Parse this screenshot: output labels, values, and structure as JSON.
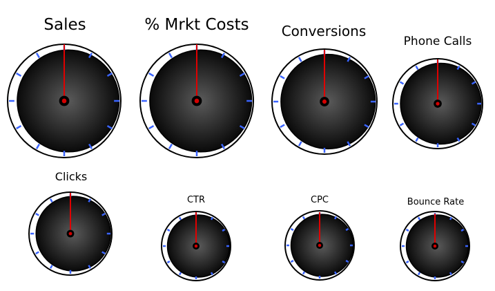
{
  "gauges": [
    {
      "id": "sales",
      "title": "Sales"
    },
    {
      "id": "mrkt-costs",
      "title": "% Mrkt Costs"
    },
    {
      "id": "conversions",
      "title": "Conversions"
    },
    {
      "id": "phone-calls",
      "title": "Phone Calls"
    },
    {
      "id": "clicks",
      "title": "Clicks"
    },
    {
      "id": "ctr",
      "title": "CTR"
    },
    {
      "id": "cpc",
      "title": "CPC"
    },
    {
      "id": "bounce-rate",
      "title": "Bounce Rate"
    }
  ],
  "colors": {
    "dial_center": "#5a5a5a",
    "dial_edge": "#0a0a0a",
    "ring": "#ffffff",
    "ring_border": "#000000",
    "tick": "#3a64ff",
    "needle": "#e00000",
    "hub": "#000000",
    "hub_dot": "#d40000"
  }
}
